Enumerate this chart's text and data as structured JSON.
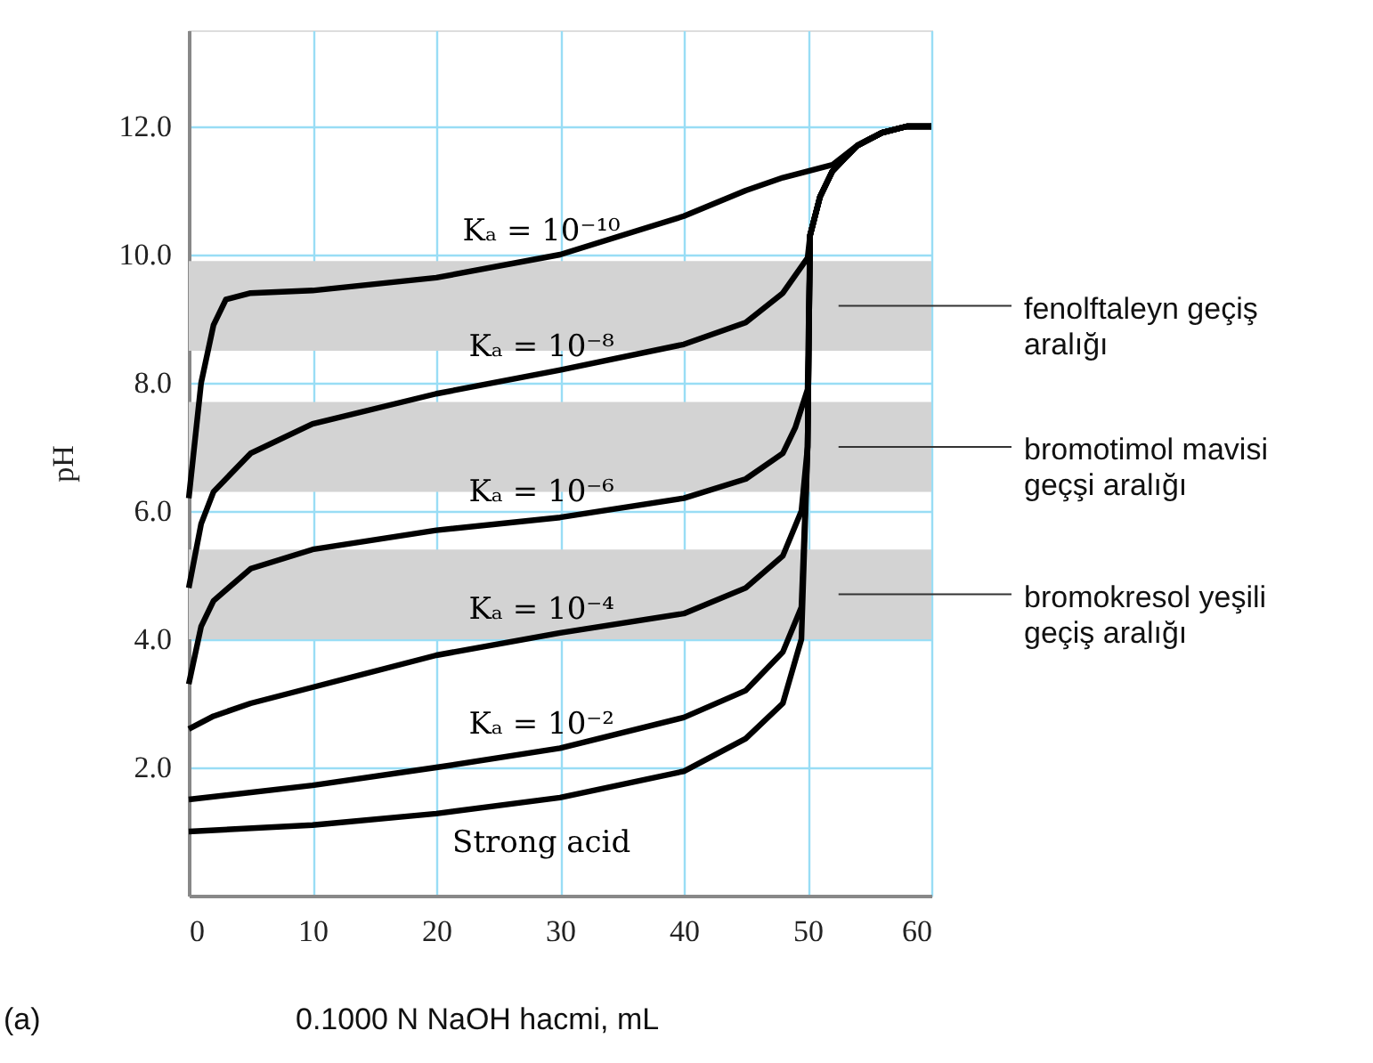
{
  "chart_data": {
    "type": "line",
    "xlabel": "0.1000 N NaOH hacmi, mL",
    "ylabel": "pH",
    "xlim": [
      0,
      60
    ],
    "ylim": [
      0,
      13.5
    ],
    "xticks": [
      0,
      10,
      20,
      30,
      40,
      50,
      60
    ],
    "yticks": [
      {
        "value": 2,
        "label": "2.0"
      },
      {
        "value": 4,
        "label": "4.0"
      },
      {
        "value": 6,
        "label": "6.0"
      },
      {
        "value": 8,
        "label": "8.0"
      },
      {
        "value": 10,
        "label": "10.0"
      },
      {
        "value": 12,
        "label": "12.0"
      }
    ],
    "grid": true,
    "line_style": "solid",
    "marker": "none",
    "series": [
      {
        "name": "Kₐ = 10⁻¹⁰",
        "color": "#000000",
        "x": [
          0,
          1,
          2,
          3,
          5,
          10,
          20,
          30,
          40,
          45,
          48,
          52,
          54,
          56,
          58,
          60
        ],
        "values": [
          6.2,
          8.0,
          8.9,
          9.3,
          9.4,
          9.44,
          9.64,
          10.0,
          10.6,
          11.0,
          11.2,
          11.4,
          11.7,
          11.9,
          12.0,
          12.0
        ]
      },
      {
        "name": "Kₐ = 10⁻⁸",
        "color": "#000000",
        "x": [
          0,
          1,
          2,
          5,
          10,
          20,
          30,
          40,
          45,
          48,
          50,
          50.2,
          51,
          52,
          54,
          56,
          58,
          60
        ],
        "values": [
          4.8,
          5.8,
          6.3,
          6.9,
          7.36,
          7.83,
          8.2,
          8.6,
          8.94,
          9.4,
          9.95,
          10.3,
          10.9,
          11.3,
          11.7,
          11.9,
          12.0,
          12.0
        ]
      },
      {
        "name": "Kₐ = 10⁻⁶",
        "color": "#000000",
        "x": [
          0,
          1,
          2,
          5,
          10,
          20,
          30,
          40,
          45,
          48,
          49,
          50,
          50.2,
          51,
          52,
          54,
          56,
          58,
          60
        ],
        "values": [
          3.3,
          4.2,
          4.6,
          5.1,
          5.4,
          5.7,
          5.9,
          6.2,
          6.5,
          6.9,
          7.3,
          7.9,
          10.3,
          10.9,
          11.3,
          11.7,
          11.9,
          12.0,
          12.0
        ]
      },
      {
        "name": "Kₐ = 10⁻⁴",
        "color": "#000000",
        "x": [
          0,
          2,
          5,
          10,
          20,
          30,
          40,
          45,
          48,
          49.5,
          50,
          50.2,
          51,
          52,
          54,
          56,
          58,
          60
        ],
        "values": [
          2.6,
          2.8,
          3.0,
          3.25,
          3.75,
          4.1,
          4.4,
          4.8,
          5.3,
          6.0,
          7.0,
          10.3,
          10.9,
          11.3,
          11.7,
          11.9,
          12.0,
          12.0
        ]
      },
      {
        "name": "Kₐ = 10⁻²",
        "color": "#000000",
        "x": [
          0,
          10,
          20,
          30,
          40,
          45,
          48,
          49.5,
          50,
          50.2,
          51,
          52,
          54,
          56,
          58,
          60
        ],
        "values": [
          1.5,
          1.72,
          2.0,
          2.3,
          2.78,
          3.2,
          3.8,
          4.5,
          7.0,
          10.3,
          10.9,
          11.3,
          11.7,
          11.9,
          12.0,
          12.0
        ]
      },
      {
        "name": "Strong acid",
        "color": "#000000",
        "x": [
          0,
          10,
          20,
          30,
          40,
          45,
          48,
          49.5,
          50,
          50.2,
          51,
          52,
          54,
          56,
          58,
          60
        ],
        "values": [
          1.0,
          1.1,
          1.28,
          1.53,
          1.94,
          2.45,
          3.0,
          4.0,
          7.0,
          10.3,
          10.9,
          11.3,
          11.7,
          11.9,
          12.0,
          12.0
        ]
      }
    ],
    "bands": [
      {
        "axis": "y",
        "from": 8.5,
        "to": 9.9,
        "color": "#d3d3d3",
        "label": "fenolftaleyn geçiş\naralığı"
      },
      {
        "axis": "y",
        "from": 6.3,
        "to": 7.7,
        "color": "#d3d3d3",
        "label": "bromotimol mavisi\ngeçşi aralığı"
      },
      {
        "axis": "y",
        "from": 4.0,
        "to": 5.4,
        "color": "#d3d3d3",
        "label": "bromokresol yeşili\ngeçiş aralığı"
      }
    ],
    "annotations": [
      "(a)"
    ]
  }
}
